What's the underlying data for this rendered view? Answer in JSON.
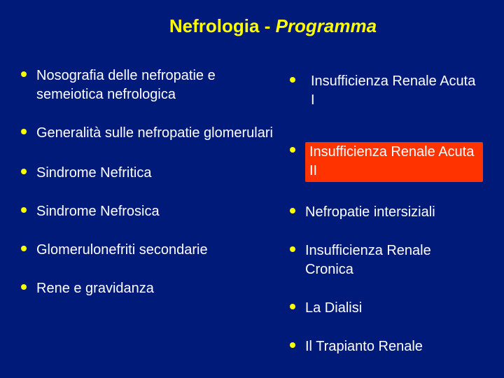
{
  "colors": {
    "background": "#001a7a",
    "title": "#ffff00",
    "text": "#ffffff",
    "bullet": "#ffff00",
    "highlight_bg": "#ff3300",
    "highlight_text": "#ffffff"
  },
  "typography": {
    "title_fontsize": 26,
    "item_fontsize": 20,
    "title_weight": "bold",
    "item_weight": "normal"
  },
  "title": {
    "plain": "Nefrologia - ",
    "italic": "Programma"
  },
  "left_items": [
    {
      "text": "Nosografia delle nefropatie e semeiotica nefrologica",
      "highlight": false
    },
    {
      "text": "Generalità sulle nefropatie glomerulari",
      "highlight": false
    },
    {
      "text": "Sindrome Nefritica",
      "highlight": false
    },
    {
      "text": "Sindrome Nefrosica",
      "highlight": false
    },
    {
      "text": "Glomerulonefriti secondarie",
      "highlight": false
    },
    {
      "text": "Rene e gravidanza",
      "highlight": false
    }
  ],
  "right_items": [
    {
      "text": "Insufficienza Renale Acuta I",
      "highlight": false
    },
    {
      "text": "Insufficienza Renale Acuta II",
      "highlight": true
    },
    {
      "text": "Nefropatie intersiziali",
      "highlight": false
    },
    {
      "text": "Insufficienza Renale Cronica",
      "highlight": false
    },
    {
      "text": "La Dialisi",
      "highlight": false
    },
    {
      "text": "Il Trapianto Renale",
      "highlight": false
    }
  ]
}
